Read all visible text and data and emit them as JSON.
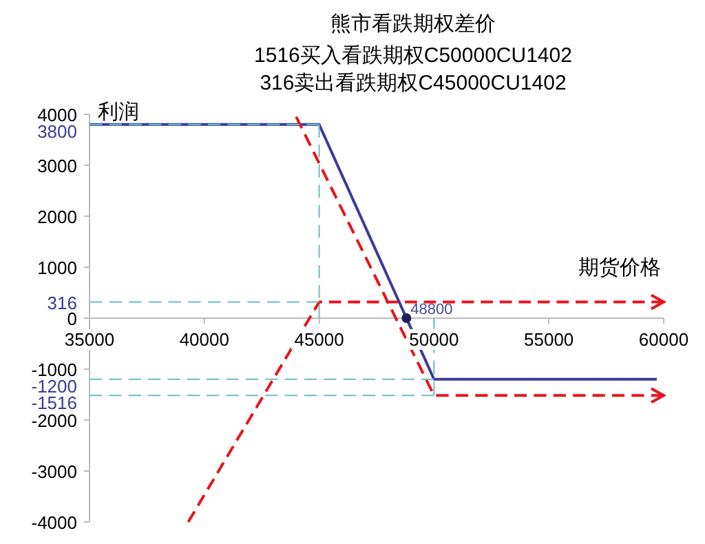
{
  "chart_data": {
    "type": "line",
    "title": "熊市看跌期权差价",
    "subtitle": "1516买入看跌期权C50000CU1402\n316卖出看跌期权C45000CU1402",
    "xlabel": "期货价格",
    "ylabel": "利润",
    "xlim": [
      35000,
      60000
    ],
    "ylim": [
      -4000,
      4000
    ],
    "xticks": [
      35000,
      40000,
      45000,
      50000,
      55000,
      60000
    ],
    "yticks": [
      -4000,
      -3000,
      -2000,
      -1516,
      -1200,
      -1000,
      0,
      316,
      1000,
      2000,
      3000,
      3800,
      4000
    ],
    "grid": false,
    "series": [
      {
        "color": "#3b3b98",
        "line_style": "solid",
        "x": [
          35000,
          45000,
          50000,
          59700
        ],
        "values": [
          3800,
          3800,
          -1200,
          -1200
        ]
      },
      {
        "color": "#e8141c",
        "line_style": "dashed",
        "x": [
          44000,
          50000,
          60000
        ],
        "values": [
          3950,
          -1516,
          -1516
        ]
      },
      {
        "color": "#e8141c",
        "line_style": "dashed",
        "x": [
          39300,
          45000,
          60000
        ],
        "values": [
          -4000,
          316,
          316
        ]
      },
      {
        "color": "#6cbcc4",
        "line_style": "dashed",
        "x": [
          35000,
          45000
        ],
        "values": [
          3800,
          3800
        ]
      },
      {
        "color": "#6cbcc4",
        "line_style": "dashed",
        "x": [
          35000,
          45000
        ],
        "values": [
          316,
          316
        ]
      },
      {
        "color": "#6cbcc4",
        "line_style": "dashed",
        "x": [
          45000,
          45000
        ],
        "values": [
          3800,
          0
        ]
      },
      {
        "color": "#6cbcc4",
        "line_style": "dashed",
        "x": [
          35000,
          50000
        ],
        "values": [
          -1200,
          -1200
        ]
      },
      {
        "color": "#6cbcc4",
        "line_style": "dashed",
        "x": [
          35000,
          50000
        ],
        "values": [
          -1516,
          -1516
        ]
      },
      {
        "color": "#6cbcc4",
        "line_style": "dashed",
        "x": [
          50000,
          50000
        ],
        "values": [
          0,
          -1516
        ]
      },
      {
        "type": "scatter",
        "color": "#1f1f5c",
        "marker": "circle",
        "x": [
          48800
        ],
        "values": [
          0
        ]
      }
    ],
    "annotations": [
      {
        "text": "48800",
        "x": 48800,
        "y": 0
      }
    ]
  }
}
